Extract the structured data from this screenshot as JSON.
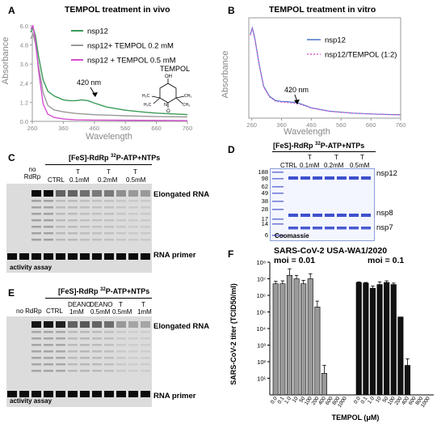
{
  "panels": {
    "A": {
      "letter": "A",
      "title": "TEMPOL treatment in vivo",
      "ylabel": "Absorbance",
      "xlabel": "Wavelength",
      "annotation": "420 nm",
      "molecule_label": "TEMPOL",
      "legend": [
        "nsp12",
        "nsp12+ TEMPOL 0.2 mM",
        "nsp12 + TEMPOL 0.5 mM"
      ]
    },
    "B": {
      "letter": "B",
      "title": "TEMPOL treatment in vitro",
      "ylabel": "Absorbance",
      "xlabel": "Wavelength",
      "annotation": "420 nm",
      "legend": [
        "nsp12",
        "nsp12/TEMPOL (1:2)"
      ]
    },
    "C": {
      "letter": "C",
      "header_pre": "[FeS]-RdRp ",
      "header_sup": "32",
      "header_post": "P-ATP+NTPs",
      "no_rdrp": "no RdRp",
      "ctrl": "CTRL",
      "t": "T",
      "conc": [
        "0.1mM",
        "0.2mM",
        "0.5mM"
      ],
      "band_top": "Elongated RNA",
      "band_bottom": "RNA primer",
      "assay": "activity assay"
    },
    "D": {
      "letter": "D",
      "header_pre": "[FeS]-RdRp ",
      "header_sup": "32",
      "header_post": "P-ATP+NTPs",
      "ctrl": "CTRL",
      "t": "T",
      "conc": [
        "0.1mM",
        "0.2mM",
        "0.5mM"
      ],
      "markers": [
        "188",
        "98",
        "62",
        "49",
        "38",
        "28",
        "17",
        "14",
        "6"
      ],
      "bands": [
        "nsp12",
        "nsp8",
        "nsp7"
      ],
      "stain": "Coomassie"
    },
    "E": {
      "letter": "E",
      "header_pre": "[FeS]-RdRp ",
      "header_sup": "32",
      "header_post": "P-ATP+NTPs",
      "no_rdrp": "no RdRp",
      "ctrl": "CTRL",
      "lanes": [
        {
          "top": "DEANO",
          "bottom": "1mM"
        },
        {
          "top": "DEANO",
          "bottom": "0.5mM"
        },
        {
          "top": "T",
          "bottom": "0.5mM"
        },
        {
          "top": "T",
          "bottom": "1mM"
        }
      ],
      "band_top": "Elongated RNA",
      "band_bottom": "RNA primer",
      "assay": "activity assay"
    },
    "F": {
      "letter": "F",
      "title": "SARS-CoV-2 USA-WA1/2020",
      "moi_left": "moi = 0.01",
      "moi_right": "moi = 0.1",
      "ylabel": "SARS-CoV-2 titer (TCID50/ml)",
      "xlabel": "TEMPOL (μM)"
    }
  },
  "chart_data": [
    {
      "type": "line",
      "panel": "A",
      "title": "TEMPOL treatment in vivo",
      "xlabel": "Wavelength",
      "ylabel": "Absorbance",
      "xlim": [
        260,
        760
      ],
      "ylim": [
        0,
        6.0
      ],
      "xticks": [
        260,
        360,
        460,
        560,
        660,
        760
      ],
      "yticks": [
        0,
        1.2,
        2.4,
        3.6,
        4.8,
        6.0
      ],
      "series": [
        {
          "name": "nsp12",
          "color": "#3a9b57",
          "x": [
            255,
            262,
            270,
            280,
            295,
            310,
            330,
            360,
            380,
            400,
            420,
            440,
            460,
            500,
            560,
            620,
            660,
            700,
            760
          ],
          "y": [
            5.6,
            5.9,
            5.4,
            4.1,
            2.6,
            1.9,
            1.6,
            1.35,
            1.3,
            1.3,
            1.35,
            1.3,
            1.15,
            0.9,
            0.7,
            0.58,
            0.52,
            0.48,
            0.43
          ]
        },
        {
          "name": "nsp12+ TEMPOL 0.2 mM",
          "color": "#9a9a9a",
          "x": [
            255,
            262,
            270,
            280,
            295,
            310,
            330,
            360,
            400,
            460,
            560,
            660,
            760
          ],
          "y": [
            5.2,
            5.5,
            4.9,
            3.5,
            1.8,
            1.0,
            0.72,
            0.6,
            0.5,
            0.42,
            0.35,
            0.3,
            0.28
          ]
        },
        {
          "name": "nsp12 + TEMPOL 0.5 mM",
          "color": "#d44fcf",
          "x": [
            255,
            262,
            270,
            280,
            295,
            310,
            330,
            360,
            400,
            460,
            560,
            660,
            760
          ],
          "y": [
            5.8,
            6.0,
            5.1,
            3.2,
            1.1,
            0.45,
            0.25,
            0.15,
            0.1,
            0.08,
            0.07,
            0.06,
            0.05
          ]
        }
      ]
    },
    {
      "type": "line",
      "panel": "B",
      "title": "TEMPOL treatment in vitro",
      "xlabel": "Wavelength",
      "ylabel": "Absorbance",
      "xlim": [
        250,
        760
      ],
      "xticks": [
        260,
        360,
        460,
        560,
        660,
        760
      ],
      "series": [
        {
          "name": "nsp12",
          "color": "#4a74c9",
          "x": [
            255,
            262,
            270,
            285,
            300,
            320,
            340,
            360,
            380,
            400,
            420,
            460,
            520,
            600,
            680,
            760
          ],
          "y": [
            5.0,
            5.4,
            4.8,
            3.2,
            1.9,
            1.3,
            1.05,
            1.0,
            0.98,
            0.95,
            0.88,
            0.62,
            0.42,
            0.3,
            0.24,
            0.2
          ]
        },
        {
          "name": "nsp12/TEMPOL (1:2)",
          "color": "#e060d0",
          "x": [
            255,
            262,
            270,
            285,
            300,
            320,
            340,
            360,
            380,
            400,
            420,
            460,
            520,
            600,
            680,
            760
          ],
          "y": [
            4.95,
            5.35,
            4.75,
            3.15,
            1.85,
            1.25,
            1.0,
            0.95,
            0.93,
            0.9,
            0.84,
            0.6,
            0.4,
            0.29,
            0.23,
            0.19
          ]
        }
      ]
    },
    {
      "type": "bar",
      "panel": "F",
      "title": "SARS-CoV-2 USA-WA1/2020",
      "xlabel": "TEMPOL (μM)",
      "ylabel": "SARS-CoV-2 titer (TCID50/ml)",
      "yscale": "log",
      "ylim": [
        1,
        100000000
      ],
      "ytick_labels": [
        "10¹",
        "10²",
        "10³",
        "10⁴",
        "10⁵",
        "10⁶",
        "10⁷",
        "10⁸"
      ],
      "groups": [
        {
          "name": "moi = 0.01",
          "color": "#999999",
          "categories": [
            "0.0",
            "0.1",
            "1.0",
            "10",
            "50",
            "100",
            "200",
            "400",
            "600",
            "800",
            "1000"
          ],
          "values": [
            5000000,
            5000000,
            16000000,
            10000000,
            5000000,
            10000000,
            200000,
            20,
            1,
            1,
            1
          ],
          "err_hi": [
            7000000,
            7500000,
            40000000,
            16000000,
            8000000,
            20000000,
            450000,
            60,
            null,
            null,
            null
          ]
        },
        {
          "name": "moi = 0.1",
          "color": "#111111",
          "categories": [
            "0.0",
            "0.1",
            "1.0",
            "10",
            "50",
            "100",
            "200",
            "400",
            "600",
            "800",
            "1000"
          ],
          "values": [
            6000000,
            5500000,
            2700000,
            4500000,
            6000000,
            4500000,
            50000,
            60,
            1,
            1,
            1
          ],
          "err_hi": [
            6500000,
            6000000,
            3600000,
            6500000,
            7500000,
            5500000,
            null,
            150,
            null,
            null,
            null
          ]
        }
      ]
    }
  ]
}
